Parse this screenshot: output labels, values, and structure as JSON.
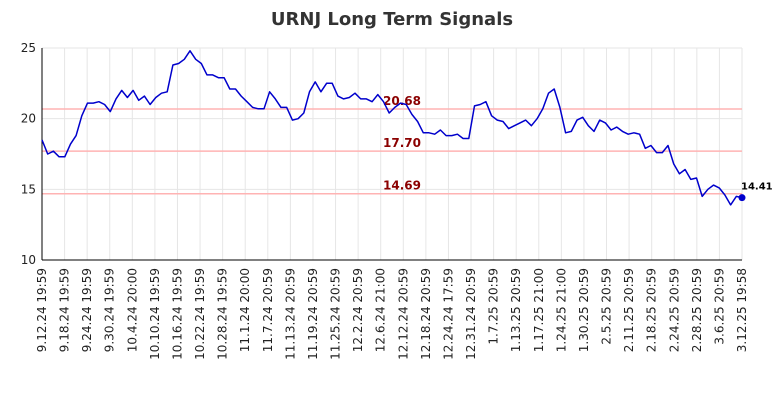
{
  "chart_data": {
    "type": "line",
    "title": "URNJ Long Term Signals",
    "xlabel": "",
    "ylabel": "",
    "ylim": [
      10,
      25
    ],
    "yticks": [
      10,
      15,
      20,
      25
    ],
    "grid": true,
    "legend": "none",
    "colors": {
      "line": "#0000cc",
      "level": "#ffb3b3",
      "level_text": "#8b0000",
      "last_point": "#0000cc"
    },
    "x_tick_labels": [
      "9.12.24 19:59",
      "9.18.24 19:59",
      "9.24.24 19:59",
      "9.30.24 19:59",
      "10.4.24 20:00",
      "10.10.24 19:59",
      "10.16.24 19:59",
      "10.22.24 19:59",
      "10.28.24 19:59",
      "11.1.24 20:00",
      "11.7.24 20:59",
      "11.13.24 20:59",
      "11.19.24 20:59",
      "11.25.24 20:59",
      "12.2.24 20:59",
      "12.6.24 21:00",
      "12.12.24 20:59",
      "12.18.24 20:59",
      "12.24.24 17:59",
      "12.31.24 20:59",
      "1.7.25 20:59",
      "1.13.25 20:59",
      "1.17.25 21:00",
      "1.24.25 21:00",
      "1.30.25 20:59",
      "2.5.25 20:59",
      "2.11.25 20:59",
      "2.18.25 20:59",
      "2.24.25 20:59",
      "2.28.25 20:59",
      "3.6.25 20:59",
      "3.12.25 19:58"
    ],
    "levels": [
      {
        "value": 20.68,
        "label": "20.68"
      },
      {
        "value": 17.7,
        "label": "17.70"
      },
      {
        "value": 14.69,
        "label": "14.69"
      }
    ],
    "last_value_label": "14.41",
    "series": [
      {
        "values": [
          18.5,
          17.5,
          17.7,
          17.3,
          17.3,
          18.2,
          18.8,
          20.2,
          21.1,
          21.1,
          21.2,
          21.0,
          20.5,
          21.4,
          22.0,
          21.5,
          22.0,
          21.3,
          21.6,
          21.0,
          21.5,
          21.8,
          21.9,
          23.8,
          23.9,
          24.2,
          24.8,
          24.2,
          23.9,
          23.1,
          23.1,
          22.9,
          22.9,
          22.1,
          22.1,
          21.6,
          21.2,
          20.8,
          20.7,
          20.7,
          21.9,
          21.4,
          20.8,
          20.8,
          19.9,
          20.0,
          20.4,
          21.9,
          22.6,
          21.9,
          22.5,
          22.5,
          21.6,
          21.4,
          21.5,
          21.8,
          21.4,
          21.4,
          21.2,
          21.7,
          21.2,
          20.4,
          20.8,
          21.1,
          21.0,
          20.3,
          19.8,
          19.0,
          19.0,
          18.9,
          19.2,
          18.8,
          18.8,
          18.9,
          18.6,
          18.6,
          20.9,
          21.0,
          21.2,
          20.2,
          19.9,
          19.8,
          19.3,
          19.5,
          19.7,
          19.9,
          19.5,
          20.0,
          20.7,
          21.8,
          22.1,
          20.8,
          19.0,
          19.1,
          19.9,
          20.1,
          19.5,
          19.1,
          19.9,
          19.7,
          19.2,
          19.4,
          19.1,
          18.9,
          19.0,
          18.9,
          17.9,
          18.1,
          17.6,
          17.6,
          18.1,
          16.8,
          16.1,
          16.4,
          15.7,
          15.8,
          14.5,
          15.0,
          15.3,
          15.1,
          14.6,
          13.9,
          14.5,
          14.41
        ]
      }
    ]
  }
}
